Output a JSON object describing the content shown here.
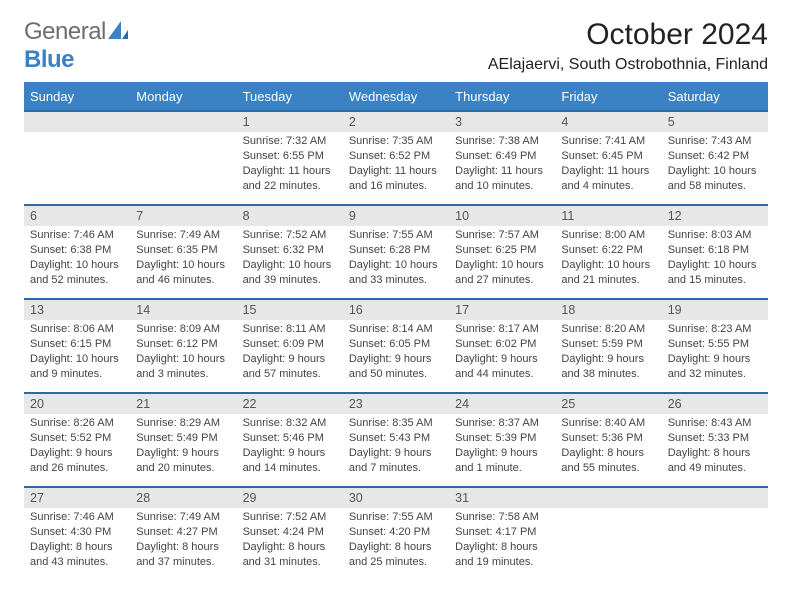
{
  "logo": {
    "text1": "General",
    "text2": "Blue"
  },
  "title": "October 2024",
  "location": "AElajaervi, South Ostrobothnia, Finland",
  "colors": {
    "header_bg": "#3b82c4",
    "daynum_bg": "#e7e7e7",
    "week_divider": "#2d6aa3",
    "text": "#444444",
    "logo_gray": "#6d6d6d",
    "logo_blue": "#3b82c4"
  },
  "day_headers": [
    "Sunday",
    "Monday",
    "Tuesday",
    "Wednesday",
    "Thursday",
    "Friday",
    "Saturday"
  ],
  "weeks": [
    [
      {
        "day": "",
        "lines": []
      },
      {
        "day": "",
        "lines": []
      },
      {
        "day": "1",
        "lines": [
          "Sunrise: 7:32 AM",
          "Sunset: 6:55 PM",
          "Daylight: 11 hours",
          "and 22 minutes."
        ]
      },
      {
        "day": "2",
        "lines": [
          "Sunrise: 7:35 AM",
          "Sunset: 6:52 PM",
          "Daylight: 11 hours",
          "and 16 minutes."
        ]
      },
      {
        "day": "3",
        "lines": [
          "Sunrise: 7:38 AM",
          "Sunset: 6:49 PM",
          "Daylight: 11 hours",
          "and 10 minutes."
        ]
      },
      {
        "day": "4",
        "lines": [
          "Sunrise: 7:41 AM",
          "Sunset: 6:45 PM",
          "Daylight: 11 hours",
          "and 4 minutes."
        ]
      },
      {
        "day": "5",
        "lines": [
          "Sunrise: 7:43 AM",
          "Sunset: 6:42 PM",
          "Daylight: 10 hours",
          "and 58 minutes."
        ]
      }
    ],
    [
      {
        "day": "6",
        "lines": [
          "Sunrise: 7:46 AM",
          "Sunset: 6:38 PM",
          "Daylight: 10 hours",
          "and 52 minutes."
        ]
      },
      {
        "day": "7",
        "lines": [
          "Sunrise: 7:49 AM",
          "Sunset: 6:35 PM",
          "Daylight: 10 hours",
          "and 46 minutes."
        ]
      },
      {
        "day": "8",
        "lines": [
          "Sunrise: 7:52 AM",
          "Sunset: 6:32 PM",
          "Daylight: 10 hours",
          "and 39 minutes."
        ]
      },
      {
        "day": "9",
        "lines": [
          "Sunrise: 7:55 AM",
          "Sunset: 6:28 PM",
          "Daylight: 10 hours",
          "and 33 minutes."
        ]
      },
      {
        "day": "10",
        "lines": [
          "Sunrise: 7:57 AM",
          "Sunset: 6:25 PM",
          "Daylight: 10 hours",
          "and 27 minutes."
        ]
      },
      {
        "day": "11",
        "lines": [
          "Sunrise: 8:00 AM",
          "Sunset: 6:22 PM",
          "Daylight: 10 hours",
          "and 21 minutes."
        ]
      },
      {
        "day": "12",
        "lines": [
          "Sunrise: 8:03 AM",
          "Sunset: 6:18 PM",
          "Daylight: 10 hours",
          "and 15 minutes."
        ]
      }
    ],
    [
      {
        "day": "13",
        "lines": [
          "Sunrise: 8:06 AM",
          "Sunset: 6:15 PM",
          "Daylight: 10 hours",
          "and 9 minutes."
        ]
      },
      {
        "day": "14",
        "lines": [
          "Sunrise: 8:09 AM",
          "Sunset: 6:12 PM",
          "Daylight: 10 hours",
          "and 3 minutes."
        ]
      },
      {
        "day": "15",
        "lines": [
          "Sunrise: 8:11 AM",
          "Sunset: 6:09 PM",
          "Daylight: 9 hours",
          "and 57 minutes."
        ]
      },
      {
        "day": "16",
        "lines": [
          "Sunrise: 8:14 AM",
          "Sunset: 6:05 PM",
          "Daylight: 9 hours",
          "and 50 minutes."
        ]
      },
      {
        "day": "17",
        "lines": [
          "Sunrise: 8:17 AM",
          "Sunset: 6:02 PM",
          "Daylight: 9 hours",
          "and 44 minutes."
        ]
      },
      {
        "day": "18",
        "lines": [
          "Sunrise: 8:20 AM",
          "Sunset: 5:59 PM",
          "Daylight: 9 hours",
          "and 38 minutes."
        ]
      },
      {
        "day": "19",
        "lines": [
          "Sunrise: 8:23 AM",
          "Sunset: 5:55 PM",
          "Daylight: 9 hours",
          "and 32 minutes."
        ]
      }
    ],
    [
      {
        "day": "20",
        "lines": [
          "Sunrise: 8:26 AM",
          "Sunset: 5:52 PM",
          "Daylight: 9 hours",
          "and 26 minutes."
        ]
      },
      {
        "day": "21",
        "lines": [
          "Sunrise: 8:29 AM",
          "Sunset: 5:49 PM",
          "Daylight: 9 hours",
          "and 20 minutes."
        ]
      },
      {
        "day": "22",
        "lines": [
          "Sunrise: 8:32 AM",
          "Sunset: 5:46 PM",
          "Daylight: 9 hours",
          "and 14 minutes."
        ]
      },
      {
        "day": "23",
        "lines": [
          "Sunrise: 8:35 AM",
          "Sunset: 5:43 PM",
          "Daylight: 9 hours",
          "and 7 minutes."
        ]
      },
      {
        "day": "24",
        "lines": [
          "Sunrise: 8:37 AM",
          "Sunset: 5:39 PM",
          "Daylight: 9 hours",
          "and 1 minute."
        ]
      },
      {
        "day": "25",
        "lines": [
          "Sunrise: 8:40 AM",
          "Sunset: 5:36 PM",
          "Daylight: 8 hours",
          "and 55 minutes."
        ]
      },
      {
        "day": "26",
        "lines": [
          "Sunrise: 8:43 AM",
          "Sunset: 5:33 PM",
          "Daylight: 8 hours",
          "and 49 minutes."
        ]
      }
    ],
    [
      {
        "day": "27",
        "lines": [
          "Sunrise: 7:46 AM",
          "Sunset: 4:30 PM",
          "Daylight: 8 hours",
          "and 43 minutes."
        ]
      },
      {
        "day": "28",
        "lines": [
          "Sunrise: 7:49 AM",
          "Sunset: 4:27 PM",
          "Daylight: 8 hours",
          "and 37 minutes."
        ]
      },
      {
        "day": "29",
        "lines": [
          "Sunrise: 7:52 AM",
          "Sunset: 4:24 PM",
          "Daylight: 8 hours",
          "and 31 minutes."
        ]
      },
      {
        "day": "30",
        "lines": [
          "Sunrise: 7:55 AM",
          "Sunset: 4:20 PM",
          "Daylight: 8 hours",
          "and 25 minutes."
        ]
      },
      {
        "day": "31",
        "lines": [
          "Sunrise: 7:58 AM",
          "Sunset: 4:17 PM",
          "Daylight: 8 hours",
          "and 19 minutes."
        ]
      },
      {
        "day": "",
        "lines": []
      },
      {
        "day": "",
        "lines": []
      }
    ]
  ]
}
